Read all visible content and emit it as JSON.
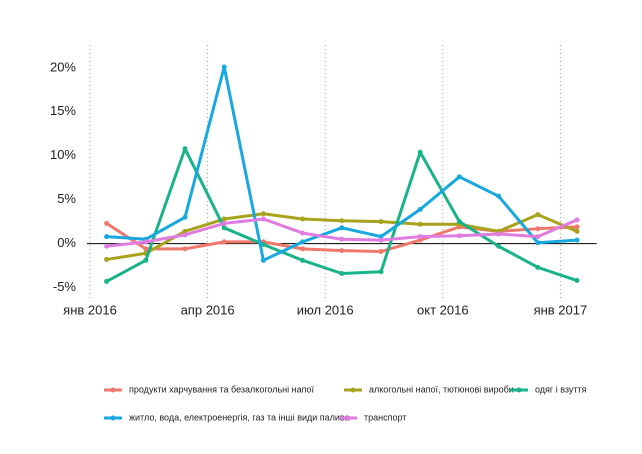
{
  "chart_data": {
    "type": "line",
    "categories": [
      "янв 2016",
      null,
      null,
      "апр 2016",
      null,
      null,
      "июл 2016",
      null,
      null,
      "окт 2016",
      null,
      null,
      "янв 2017"
    ],
    "series": [
      {
        "name": "продукти харчування та безалкогольні напої",
        "color": "#f0776b",
        "values": [
          2.3,
          -0.6,
          -0.6,
          0.2,
          0.2,
          -0.6,
          -0.8,
          -0.9,
          0.4,
          1.9,
          1.4,
          1.7,
          1.9
        ]
      },
      {
        "name": "алкогольні напої, тютюнові вироби",
        "color": "#a8a21c",
        "values": [
          -1.8,
          -1.1,
          1.4,
          2.8,
          3.4,
          2.8,
          2.6,
          2.5,
          2.2,
          2.2,
          1.4,
          3.3,
          1.4
        ]
      },
      {
        "name": "одяг і взуття",
        "color": "#1ab388",
        "values": [
          -4.3,
          -1.9,
          10.8,
          1.8,
          -0.1,
          -1.9,
          -3.4,
          -3.2,
          10.4,
          2.5,
          -0.3,
          -2.7,
          -4.2
        ]
      },
      {
        "name": "житло, вода, електроенергія, газ та інші види палива",
        "color": "#17a8e0",
        "values": [
          0.8,
          0.5,
          3.0,
          20.1,
          -1.9,
          0.2,
          1.8,
          0.8,
          3.9,
          7.6,
          5.4,
          0.1,
          0.4
        ]
      },
      {
        "name": "транспорт",
        "color": "#e07be0",
        "values": [
          -0.3,
          0.2,
          1.0,
          2.3,
          2.8,
          1.2,
          0.5,
          0.4,
          0.8,
          0.9,
          1.1,
          0.8,
          2.7
        ]
      }
    ],
    "ylim": [
      -6.3,
      22.6
    ],
    "yticks": [
      {
        "value": -5,
        "label": "-5%"
      },
      {
        "value": 0,
        "label": "0%"
      },
      {
        "value": 5,
        "label": "5%"
      },
      {
        "value": 10,
        "label": "10%"
      },
      {
        "value": 15,
        "label": "15%"
      },
      {
        "value": 20,
        "label": "20%"
      }
    ],
    "grid": true
  }
}
